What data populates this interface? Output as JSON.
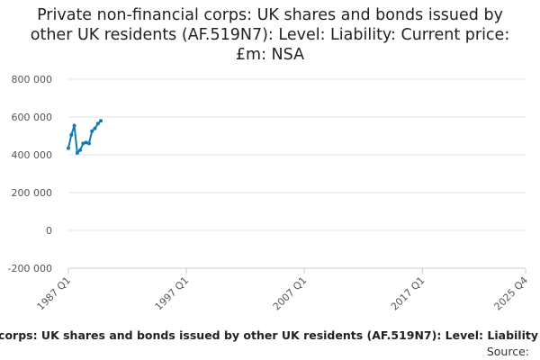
{
  "chart_data": {
    "type": "line",
    "title": "Private non-financial corps: UK shares and bonds issued by other UK residents (AF.519N7): Level: Liability: Current price: £m: NSA",
    "x": [
      "1987 Q1",
      "1987 Q2",
      "1987 Q3",
      "1987 Q4",
      "1988 Q1",
      "1988 Q2",
      "1988 Q3",
      "1988 Q4",
      "1989 Q1",
      "1989 Q2",
      "1989 Q3",
      "1989 Q4"
    ],
    "series": [
      {
        "name": "corps: UK shares and bonds issued by other UK residents (AF.519N7): Level: Liability",
        "color": "#0f7ab5",
        "values": [
          435000,
          505000,
          555000,
          410000,
          425000,
          460000,
          465000,
          460000,
          525000,
          540000,
          565000,
          580000
        ]
      }
    ],
    "xlim": [
      "1987 Q1",
      "2025 Q4"
    ],
    "xticks": [
      "1987 Q1",
      "1997 Q1",
      "2007 Q1",
      "2017 Q1",
      "2025 Q4"
    ],
    "ylim": [
      -200000,
      800000
    ],
    "yticks": [
      {
        "value": -200000,
        "label": "-200 000"
      },
      {
        "value": 0,
        "label": "0"
      },
      {
        "value": 200000,
        "label": "200 000"
      },
      {
        "value": 400000,
        "label": "400 000"
      },
      {
        "value": 600000,
        "label": "600 000"
      },
      {
        "value": 800000,
        "label": "800 000"
      }
    ],
    "grid": true,
    "source": "Source:"
  }
}
